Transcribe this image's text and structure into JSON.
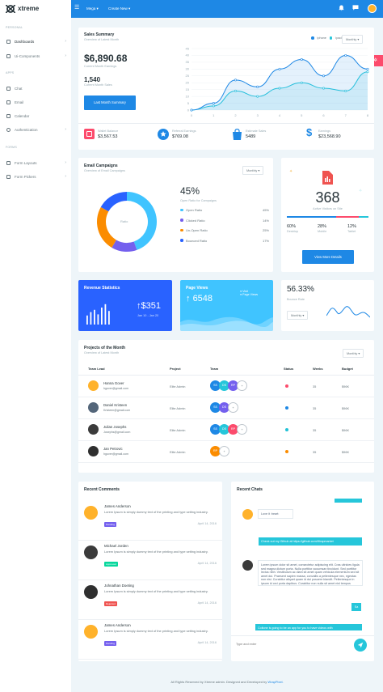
{
  "app": {
    "name": "xtreme"
  },
  "topbar": {
    "menu_mega": "Mega ▾",
    "menu_create": "Create New ▾"
  },
  "sidebar": {
    "sections": [
      "PERSONAL",
      "APPS",
      "FORMS"
    ],
    "items": [
      {
        "label": "Dashboards",
        "chevron": "›"
      },
      {
        "label": "Ui-Components",
        "chevron": "›"
      },
      {
        "label": "Chat",
        "chevron": ""
      },
      {
        "label": "Email",
        "chevron": ""
      },
      {
        "label": "Calendar",
        "chevron": ""
      },
      {
        "label": "Authentication",
        "chevron": "›"
      },
      {
        "label": "Form Layouts",
        "chevron": "›"
      },
      {
        "label": "Form Pickers",
        "chevron": "›"
      }
    ]
  },
  "sales": {
    "title": "Sales Summary",
    "subtitle": "Overview of Latest Month",
    "earnings_value": "$6,890.68",
    "earnings_label": "Current Month Earnings",
    "sales_value": "1,540",
    "sales_label": "Current Month Sales",
    "button": "Last Month Summary",
    "legend": [
      "iphone",
      "ipad"
    ],
    "select": "Monthly",
    "stats": [
      {
        "label": "Wallet Balance",
        "value": "$3,567.53",
        "color": "#fc4b6c"
      },
      {
        "label": "Referral Earnings",
        "value": "$769.08",
        "color": "#1e88e5"
      },
      {
        "label": "Estimate Sales",
        "value": "5489",
        "color": "#1e88e5"
      },
      {
        "label": "Earnings",
        "value": "$23,568.90",
        "color": "#1e88e5"
      }
    ]
  },
  "chart_data": {
    "type": "area",
    "x": [
      0,
      1,
      2,
      3,
      4,
      5,
      6,
      7,
      8
    ],
    "series": [
      {
        "name": "iphone",
        "values": [
          0,
          5,
          22,
          17,
          30,
          37,
          25,
          40,
          30
        ],
        "color": "#1e88e5"
      },
      {
        "name": "ipad",
        "values": [
          0,
          3,
          14,
          10,
          16,
          20,
          16,
          14,
          28
        ],
        "color": "#26c6da"
      }
    ],
    "ylim": [
      0,
      45
    ],
    "yticks": [
      "0",
      "5",
      "10",
      "15",
      "20",
      "25",
      "30",
      "35",
      "40",
      "45"
    ],
    "xticks": [
      "0",
      "1",
      "2",
      "3",
      "4",
      "5",
      "6",
      "7",
      "8"
    ],
    "legend": "top-right"
  },
  "email": {
    "title": "Email Campaigns",
    "subtitle": "Overview of Email Campaigns",
    "select": "Monthly",
    "center_label": "Ratio",
    "percent": "45%",
    "percent_label": "Open Ratio for Campaigns",
    "donut": [
      {
        "label": "Open Ratio",
        "value": 45,
        "display": "45%",
        "color": "#40c4ff"
      },
      {
        "label": "Clicked Ratio",
        "value": 14,
        "display": "14%",
        "color": "#7460ee"
      },
      {
        "label": "Un-Open Ratio",
        "value": 25,
        "display": "25%",
        "color": "#fb8c00"
      },
      {
        "label": "Bounced Ratio",
        "value": 17,
        "display": "17%",
        "color": "#2962ff"
      }
    ]
  },
  "visitors": {
    "count": "368",
    "label": "Active Visitors on Site",
    "stats": [
      {
        "value": "60%",
        "label": "Desktop"
      },
      {
        "value": "28%",
        "label": "Mobile"
      },
      {
        "value": "12%",
        "label": "Tablet"
      }
    ],
    "progress": [
      60,
      28,
      12
    ],
    "button": "View More Details"
  },
  "revenue": {
    "title": "Revenue Statistics",
    "value": "$351",
    "date": "Jan 10 - Jan 20",
    "bars": [
      40,
      55,
      65,
      45,
      75,
      90,
      60
    ]
  },
  "pageviews": {
    "title": "Page Views",
    "value": "6548",
    "legend": [
      "Visit",
      "Page Views"
    ]
  },
  "bounce": {
    "value": "56.33%",
    "label": "Bounce Rate",
    "select": "Monthly"
  },
  "projects": {
    "title": "Projects of the Month",
    "subtitle": "Overview of Latest Month",
    "select": "Monthly",
    "columns": [
      "Team Lead",
      "Project",
      "Team",
      "Status",
      "Weeks",
      "Budget"
    ],
    "rows": [
      {
        "name": "Hanna Gover",
        "email": "hgover@gmail.com",
        "project": "Elite Admin",
        "team": [
          {
            "t": "SS",
            "c": "#1e88e5"
          },
          {
            "t": "DS",
            "c": "#26c6da"
          },
          {
            "t": "RP",
            "c": "#7460ee"
          },
          {
            "t": "+",
            "c": "#ffffff"
          }
        ],
        "status": "#fc4b6c",
        "weeks": "35",
        "budget": "$96K",
        "avatar": "#ffb22b"
      },
      {
        "name": "Daniel Kristeen",
        "email": "Kristeen@gmail.com",
        "project": "Elite Admin",
        "team": [
          {
            "t": "SS",
            "c": "#1e88e5"
          },
          {
            "t": "DS",
            "c": "#7460ee"
          },
          {
            "t": "+",
            "c": "#ffffff"
          }
        ],
        "status": "#1e88e5",
        "weeks": "35",
        "budget": "$96K",
        "avatar": "#54667a"
      },
      {
        "name": "Julian Josephs",
        "email": "Josephs@gmail.com",
        "project": "Elite Admin",
        "team": [
          {
            "t": "SS",
            "c": "#1e88e5"
          },
          {
            "t": "DS",
            "c": "#26c6da"
          },
          {
            "t": "RP",
            "c": "#fc4b6c"
          },
          {
            "t": "+",
            "c": "#ffffff"
          }
        ],
        "status": "#21c1d6",
        "weeks": "35",
        "budget": "$96K",
        "avatar": "#3b3b3b"
      },
      {
        "name": "Jan Petrovic",
        "email": "hgover@gmail.com",
        "project": "Elite Admin",
        "team": [
          {
            "t": "RP",
            "c": "#fb8c00"
          },
          {
            "t": "+",
            "c": "#ffffff"
          }
        ],
        "status": "#fb8c00",
        "weeks": "35",
        "budget": "$96K",
        "avatar": "#2f2f2f"
      }
    ]
  },
  "comments": {
    "title": "Recent Comments",
    "items": [
      {
        "name": "James Anderson",
        "text": "Lorem Ipsum is simply dummy text of the printing and type setting industry.",
        "badge": "Pending",
        "badge_color": "#7460ee",
        "date": "April 14, 2016",
        "avatar": "#ffb22b"
      },
      {
        "name": "Michael Jorden",
        "text": "Lorem Ipsum is simply dummy text of the printing and type setting industry.",
        "badge": "Approved",
        "badge_color": "#06d79c",
        "date": "April 14, 2016",
        "avatar": "#3b3b3b"
      },
      {
        "name": "Johnathan Doeting",
        "text": "Lorem Ipsum is simply dummy text of the printing and type setting industry.",
        "badge": "Rejected",
        "badge_color": "#ef5350",
        "date": "April 14, 2016",
        "avatar": "#2f2f2f"
      },
      {
        "name": "James Anderson",
        "text": "Lorem Ipsum is simply dummy text of the printing and type setting industry.",
        "badge": "Pending",
        "badge_color": "#7460ee",
        "date": "April 14, 2016",
        "avatar": "#ffb22b"
      }
    ]
  },
  "chats": {
    "title": "Recent Chats",
    "messages": [
      {
        "side": "right",
        "text": ""
      },
      {
        "side": "left",
        "text": "Love it :heart:"
      },
      {
        "side": "right",
        "text": "Check out my Github at https://github.com/Wrapmarket"
      },
      {
        "side": "left",
        "text": "Lorem ipsum dolor sit amet, consectetur adipiscing elit. Cras ultricies ligula sed magna dictum porta. Nulla porttitor accumsan tincidunt. Sed porttitor lectus nibh. Vestibulum ac diam sit amet quam vehicula elementum sed sit amet dui. Praesent sapien massa, convallis a pellentesque nec, egestas non nisi. Curabitur aliquet quam id dui posuere blandit. Pellentesque in ipsum id orci porta dapibus. Curabitur non nulla sit amet nisl tempus convallis quis ac lectus. Nulla porttitor accumsan tincidunt."
      },
      {
        "side": "right",
        "text": "Sa"
      },
      {
        "side": "right",
        "text": "Coltone is going to be an app for you to have videos with"
      }
    ],
    "input_placeholder": "Type and enter"
  },
  "footer": {
    "text": "All Rights Reserved by Xtreme admin. Designed and Developed by",
    "link": "WrapPixel."
  }
}
